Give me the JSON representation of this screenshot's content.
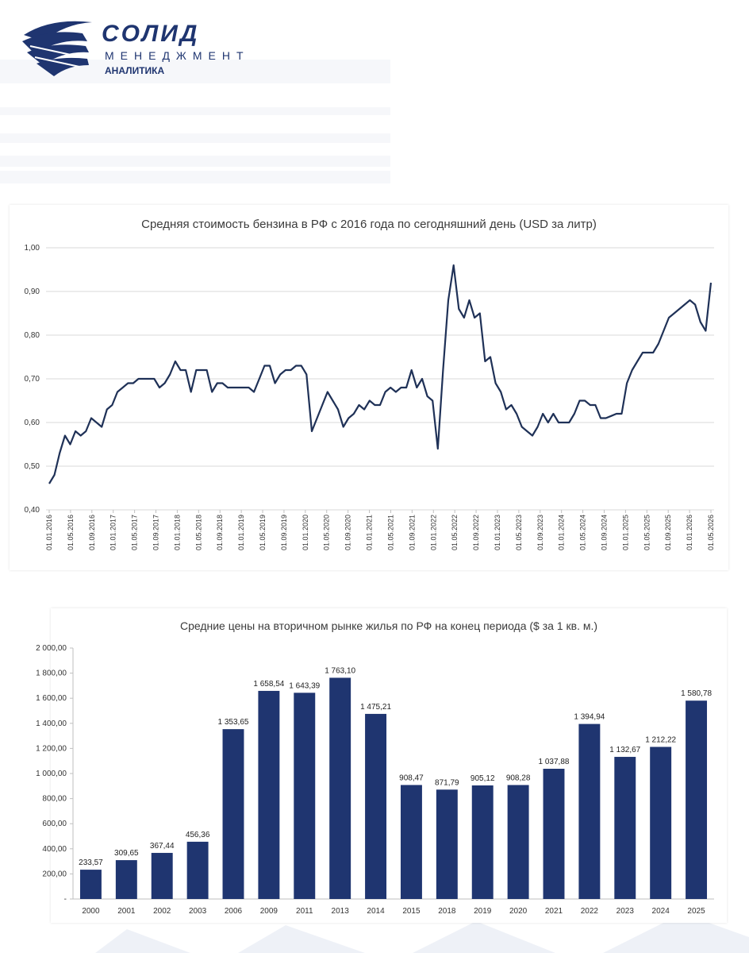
{
  "header": {
    "brand_name": "СОЛИД",
    "brand_sub": "МЕНЕДЖМЕНТ",
    "brand_tag": "АНАЛИТИКА",
    "brand_color": "#1f3570",
    "logo_icon": "solid-stripes-logo-icon"
  },
  "chart_data": [
    {
      "type": "line",
      "title": "Средняя стоимость бензина в РФ с 2016 года по сегодняшний день (USD за литр)",
      "xlabel": "",
      "ylabel": "",
      "ylim": [
        0.4,
        1.0
      ],
      "yticks": [
        "0,40",
        "0,50",
        "0,60",
        "0,70",
        "0,80",
        "0,90",
        "1,00"
      ],
      "grid": true,
      "color": "#1f3157",
      "xticks": [
        "01.01.2016",
        "01.05.2016",
        "01.09.2016",
        "01.01.2017",
        "01.05.2017",
        "01.09.2017",
        "01.01.2018",
        "01.05.2018",
        "01.09.2018",
        "01.01.2019",
        "01.05.2019",
        "01.09.2019",
        "01.01.2020",
        "01.05.2020",
        "01.09.2020",
        "01.01.2021",
        "01.05.2021",
        "01.09.2021",
        "01.01.2022",
        "01.05.2022",
        "01.09.2022",
        "01.01.2023",
        "01.05.2023",
        "01.09.2023",
        "01.01.2024",
        "01.05.2024",
        "01.09.2024",
        "01.01.2025",
        "01.05.2025",
        "01.09.2025",
        "01.01.2026",
        "01.05.2026"
      ],
      "values": [
        0.46,
        0.48,
        0.53,
        0.57,
        0.55,
        0.58,
        0.57,
        0.58,
        0.61,
        0.6,
        0.59,
        0.63,
        0.64,
        0.67,
        0.68,
        0.69,
        0.69,
        0.7,
        0.7,
        0.7,
        0.7,
        0.68,
        0.69,
        0.71,
        0.74,
        0.72,
        0.72,
        0.67,
        0.72,
        0.72,
        0.72,
        0.67,
        0.69,
        0.69,
        0.68,
        0.68,
        0.68,
        0.68,
        0.68,
        0.67,
        0.7,
        0.73,
        0.73,
        0.69,
        0.71,
        0.72,
        0.72,
        0.73,
        0.73,
        0.71,
        0.58,
        0.61,
        0.64,
        0.67,
        0.65,
        0.63,
        0.59,
        0.61,
        0.62,
        0.64,
        0.63,
        0.65,
        0.64,
        0.64,
        0.67,
        0.68,
        0.67,
        0.68,
        0.68,
        0.72,
        0.68,
        0.7,
        0.66,
        0.65,
        0.54,
        0.72,
        0.88,
        0.96,
        0.86,
        0.84,
        0.88,
        0.84,
        0.85,
        0.74,
        0.75,
        0.69,
        0.67,
        0.63,
        0.64,
        0.62,
        0.59,
        0.58,
        0.57,
        0.59,
        0.62,
        0.6,
        0.62,
        0.6,
        0.6,
        0.6,
        0.62,
        0.65,
        0.65,
        0.64,
        0.64,
        0.61,
        0.61,
        0.615,
        0.62,
        0.62,
        0.69,
        0.72,
        0.74,
        0.76,
        0.76,
        0.76,
        0.78,
        0.81,
        0.84,
        0.85,
        0.86,
        0.87,
        0.88,
        0.87,
        0.83,
        0.81,
        0.92
      ]
    },
    {
      "type": "bar",
      "title": "Средние цены на вторичном рынке жилья по РФ на конец периода ($ за 1 кв. м.)",
      "xlabel": "",
      "ylabel": "",
      "ylim": [
        0,
        2000
      ],
      "yticks": [
        "-",
        "200,00",
        "400,00",
        "600,00",
        "800,00",
        "1 000,00",
        "1 200,00",
        "1 400,00",
        "1 600,00",
        "1 800,00",
        "2 000,00"
      ],
      "grid": false,
      "color": "#1f3570",
      "categories": [
        "2000",
        "2001",
        "2002",
        "2003",
        "2006",
        "2009",
        "2011",
        "2013",
        "2014",
        "2015",
        "2018",
        "2019",
        "2020",
        "2021",
        "2022",
        "2023",
        "2024",
        "2025"
      ],
      "values": [
        233.57,
        309.65,
        367.44,
        456.36,
        1353.65,
        1658.54,
        1643.39,
        1763.1,
        1475.21,
        908.47,
        871.79,
        905.12,
        908.28,
        1037.88,
        1394.94,
        1132.67,
        1212.22,
        1580.78
      ],
      "labels": [
        "233,57",
        "309,65",
        "367,44",
        "456,36",
        "1 353,65",
        "1 658,54",
        "1 643,39",
        "1 763,10",
        "1 475,21",
        "908,47",
        "871,79",
        "905,12",
        "908,28",
        "1 037,88",
        "1 394,94",
        "1 132,67",
        "1 212,22",
        "1 580,78"
      ]
    }
  ]
}
